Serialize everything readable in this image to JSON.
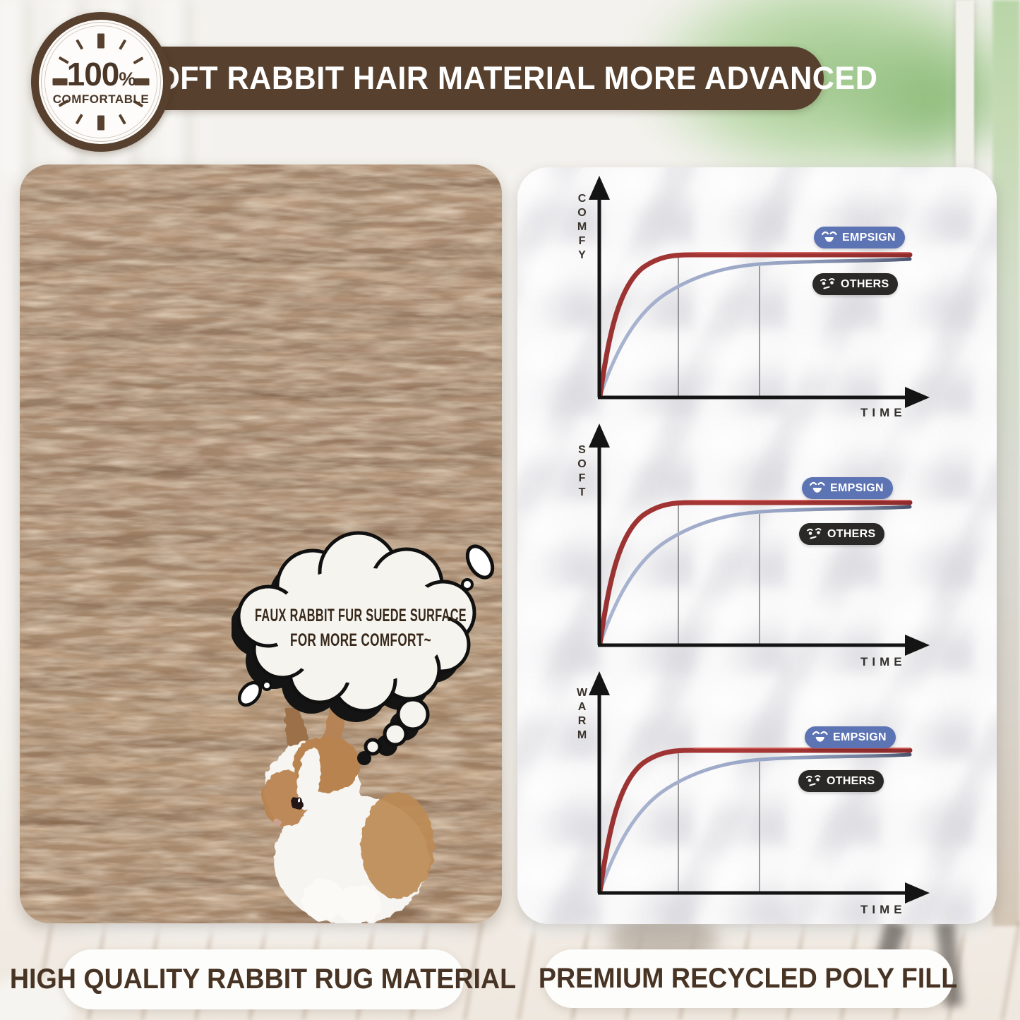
{
  "badge": {
    "value": "100",
    "percent": "%",
    "label": "COMFORTABLE"
  },
  "banner": {
    "title": "SOFT RABBIT HAIR MATERIAL MORE ADVANCED"
  },
  "rug_panel": {
    "thought_bubble": {
      "line1": "FAUX RABBIT FUR SUEDE SURFACE",
      "line2": "FOR MORE COMFORT~"
    },
    "caption": "HIGH QUALITY RABBIT RUG MATERIAL"
  },
  "charts_panel": {
    "caption": "PREMIUM RECYCLED POLY FILL",
    "legend": {
      "brand": "EMPSIGN",
      "others": "OTHERS"
    }
  },
  "chart_data": [
    {
      "type": "line",
      "title": "",
      "ylabel": "COMFY",
      "xlabel": "TIME",
      "axes_numeric_labels": false,
      "grid": "two vertical reference lines",
      "x_normalized": [
        0,
        1,
        2,
        3,
        4,
        5,
        6,
        7,
        8,
        9,
        10
      ],
      "gridlines_x_normalized": [
        2.5,
        5.1
      ],
      "series": [
        {
          "name": "EMPSIGN",
          "color": "#a53432",
          "values_normalized": [
            0,
            0.62,
            0.93,
            1.0,
            1.0,
            1.0,
            1.0,
            1.0,
            1.0,
            1.0,
            1.0
          ]
        },
        {
          "name": "OTHERS",
          "color": "#9aa8c8",
          "values_normalized": [
            0,
            0.33,
            0.58,
            0.75,
            0.85,
            0.9,
            0.93,
            0.95,
            0.96,
            0.965,
            0.97
          ]
        }
      ],
      "legend_position": "right-inside"
    },
    {
      "type": "line",
      "title": "",
      "ylabel": "SOFT",
      "xlabel": "TIME",
      "axes_numeric_labels": false,
      "grid": "two vertical reference lines",
      "x_normalized": [
        0,
        1,
        2,
        3,
        4,
        5,
        6,
        7,
        8,
        9,
        10
      ],
      "gridlines_x_normalized": [
        2.5,
        5.1
      ],
      "series": [
        {
          "name": "EMPSIGN",
          "color": "#a53432",
          "values_normalized": [
            0,
            0.62,
            0.93,
            1.0,
            1.0,
            1.0,
            1.0,
            1.0,
            1.0,
            1.0,
            1.0
          ]
        },
        {
          "name": "OTHERS",
          "color": "#9aa8c8",
          "values_normalized": [
            0,
            0.33,
            0.58,
            0.75,
            0.85,
            0.9,
            0.93,
            0.95,
            0.96,
            0.965,
            0.97
          ]
        }
      ],
      "legend_position": "right-inside"
    },
    {
      "type": "line",
      "title": "",
      "ylabel": "WARM",
      "xlabel": "TIME",
      "axes_numeric_labels": false,
      "grid": "two vertical reference lines",
      "x_normalized": [
        0,
        1,
        2,
        3,
        4,
        5,
        6,
        7,
        8,
        9,
        10
      ],
      "gridlines_x_normalized": [
        2.5,
        5.1
      ],
      "series": [
        {
          "name": "EMPSIGN",
          "color": "#a53432",
          "values_normalized": [
            0,
            0.62,
            0.93,
            1.0,
            1.0,
            1.0,
            1.0,
            1.0,
            1.0,
            1.0,
            1.0
          ]
        },
        {
          "name": "OTHERS",
          "color": "#9aa8c8",
          "values_normalized": [
            0,
            0.33,
            0.58,
            0.75,
            0.85,
            0.9,
            0.93,
            0.95,
            0.96,
            0.965,
            0.97
          ]
        }
      ],
      "legend_position": "right-inside"
    }
  ],
  "colors": {
    "banner_brown": "#57402d",
    "badge_text_brown": "#4a3627",
    "caption_text_brown": "#483424",
    "legend_brand_bg": "#5c73b4",
    "legend_others_bg": "#2b2927",
    "line_red": "#a53432",
    "line_blue": "#9aa8c8",
    "axis_black": "#141414",
    "fur_base": "#ab8a6f",
    "bubble_text": "#37281a"
  }
}
